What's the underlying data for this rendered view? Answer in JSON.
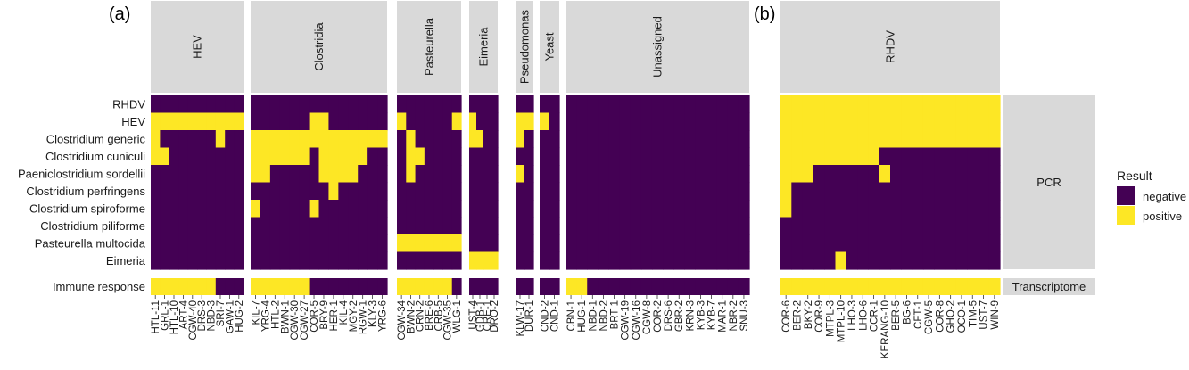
{
  "panels": [
    {
      "label": "(a)"
    },
    {
      "label": "(b)"
    }
  ],
  "chart_data": [
    {
      "type": "heatmap",
      "panel": "(a)",
      "rows": [
        "RHDV",
        "HEV",
        "Clostridium generic",
        "Clostridium cuniculi",
        "Paeniclostridium sordellii",
        "Clostridium perfringens",
        "Clostridium spiroforme",
        "Clostridium piliforme",
        "Pasteurella multocida",
        "Eimeria"
      ],
      "row_group": "PCR",
      "transcriptome_row": "Immune response",
      "facets": [
        {
          "name": "HEV",
          "columns": [
            "HTL-11",
            "GRL-1",
            "HTL-10",
            "ART-4",
            "CGW-40",
            "DRS-3",
            "NBD-3",
            "SRI-7",
            "GAW-1",
            "HUG-2"
          ],
          "rows": {
            "RHDV": "0000000000",
            "HEV": "1111111111",
            "Clostridium generic": "1000000100",
            "Clostridium cuniculi": "1100000000",
            "Paeniclostridium sordellii": "0000000000",
            "Clostridium perfringens": "0000000000",
            "Clostridium spiroforme": "0000000000",
            "Clostridium piliforme": "0000000000",
            "Pasteurella multocida": "0000000000",
            "Eimeria": "0000000000"
          },
          "immune": "1111111000"
        },
        {
          "name": "Clostridia",
          "columns": [
            "KIL-7",
            "YRG-4",
            "HTL-2",
            "BWN-1",
            "CGW-30",
            "CGW-27",
            "COR-5",
            "BRY-9",
            "HER-1",
            "KIL-4",
            "MGY-2",
            "RGW-1",
            "KLY-3",
            "YRG-6"
          ],
          "rows": {
            "RHDV": "00000000000000",
            "HEV": "00000011000000",
            "Clostridium generic": "11111111111111",
            "Clostridium cuniculi": "11111101111100",
            "Paeniclostridium sordellii": "11000001111000",
            "Clostridium perfringens": "00000000100000",
            "Clostridium spiroforme": "10000010000000",
            "Clostridium piliforme": "00000000000000",
            "Pasteurella multocida": "00000000000000",
            "Eimeria": "00000000000000"
          },
          "immune": "11111100000000"
        },
        {
          "name": "Pasteurella",
          "columns": [
            "CGW-34",
            "BWN-2",
            "CRN-2",
            "BRE-6",
            "CRB-5",
            "CGW-35",
            "WLG-1"
          ],
          "rows": {
            "RHDV": "0000000",
            "HEV": "1000001",
            "Clostridium generic": "0100000",
            "Clostridium cuniculi": "0110000",
            "Paeniclostridium sordellii": "0100000",
            "Clostridium perfringens": "0000000",
            "Clostridium spiroforme": "0000000",
            "Clostridium piliforme": "0000000",
            "Pasteurella multocida": "1111111",
            "Eimeria": "0000000"
          },
          "immune": "1111110"
        },
        {
          "name": "Eimeria",
          "columns": [
            "UST-4",
            "GDB-1",
            "CRE-1",
            "DRO-2"
          ],
          "rows": {
            "RHDV": "0000",
            "HEV": "1000",
            "Clostridium generic": "1100",
            "Clostridium cuniculi": "0000",
            "Paeniclostridium sordellii": "0000",
            "Clostridium perfringens": "0000",
            "Clostridium spiroforme": "0000",
            "Clostridium piliforme": "0000",
            "Pasteurella multocida": "0000",
            "Eimeria": "1111"
          },
          "immune": "0000"
        },
        {
          "name": "Pseudomonas",
          "columns": [
            "KLW-17",
            "DUR-1"
          ],
          "rows": {
            "RHDV": "00",
            "HEV": "11",
            "Clostridium generic": "10",
            "Clostridium cuniculi": "00",
            "Paeniclostridium sordellii": "10",
            "Clostridium perfringens": "00",
            "Clostridium spiroforme": "00",
            "Clostridium piliforme": "00",
            "Pasteurella multocida": "00",
            "Eimeria": "00"
          },
          "immune": "00"
        },
        {
          "name": "Yeast",
          "columns": [
            "CND-2",
            "CND-1"
          ],
          "rows": {
            "RHDV": "00",
            "HEV": "10",
            "Clostridium generic": "00",
            "Clostridium cuniculi": "00",
            "Paeniclostridium sordellii": "00",
            "Clostridium perfringens": "00",
            "Clostridium spiroforme": "00",
            "Clostridium piliforme": "00",
            "Pasteurella multocida": "00",
            "Eimeria": "00"
          },
          "immune": "00"
        },
        {
          "name": "Unassigned",
          "columns": [
            "CBN-1",
            "HUG-1",
            "NBD-1",
            "NBD-2",
            "BRT-1",
            "CGW-19",
            "CGW-16",
            "CGW-8",
            "COR-2",
            "DRS-6",
            "GBR-2",
            "KRN-3",
            "KYB-3",
            "KYB-7",
            "MAR-1",
            "NBR-2",
            "SNU-3"
          ],
          "rows": {
            "RHDV": "00000000000000000",
            "HEV": "00000000000000000",
            "Clostridium generic": "00000000000000000",
            "Clostridium cuniculi": "00000000000000000",
            "Paeniclostridium sordellii": "00000000000000000",
            "Clostridium perfringens": "00000000000000000",
            "Clostridium spiroforme": "00000000000000000",
            "Clostridium piliforme": "00000000000000000",
            "Pasteurella multocida": "00000000000000000",
            "Eimeria": "00000000000000000"
          },
          "immune": "11000000000000000"
        }
      ]
    },
    {
      "type": "heatmap",
      "panel": "(b)",
      "facets": [
        {
          "name": "RHDV",
          "columns": [
            "COR-6",
            "BER-2",
            "BKY-2",
            "COR-9",
            "MTPL-3",
            "MTPL-10",
            "LHO-3",
            "LHO-6",
            "CCR-1",
            "KERANG-10",
            "BER-5",
            "BG-6",
            "CFT-1",
            "CGW-5",
            "COR-8",
            "GHO-2",
            "OCO-1",
            "TIM-5",
            "UST-7",
            "WIN-9"
          ],
          "rows": {
            "RHDV": "11111111111111111111",
            "HEV": "11111111111111111111",
            "Clostridium generic": "11111111111111111111",
            "Clostridium cuniculi": "11111111100000000000",
            "Paeniclostridium sordellii": "11100000010000000000",
            "Clostridium perfringens": "10000000000000000000",
            "Clostridium spiroforme": "10000000000000000000",
            "Clostridium piliforme": "00000000000000000000",
            "Pasteurella multocida": "00000000000000000000",
            "Eimeria": "00000100000000000000"
          },
          "immune": "11111111111111111111"
        }
      ]
    }
  ],
  "right_strips": {
    "pcr": "PCR",
    "transcriptome": "Transcriptome"
  },
  "legend": {
    "title": "Result",
    "items": [
      {
        "label": "negative",
        "color": "#440154"
      },
      {
        "label": "positive",
        "color": "#fde725"
      }
    ]
  },
  "colors": {
    "negative": "#440154",
    "positive": "#fde725",
    "strip": "#d9d9d9"
  }
}
